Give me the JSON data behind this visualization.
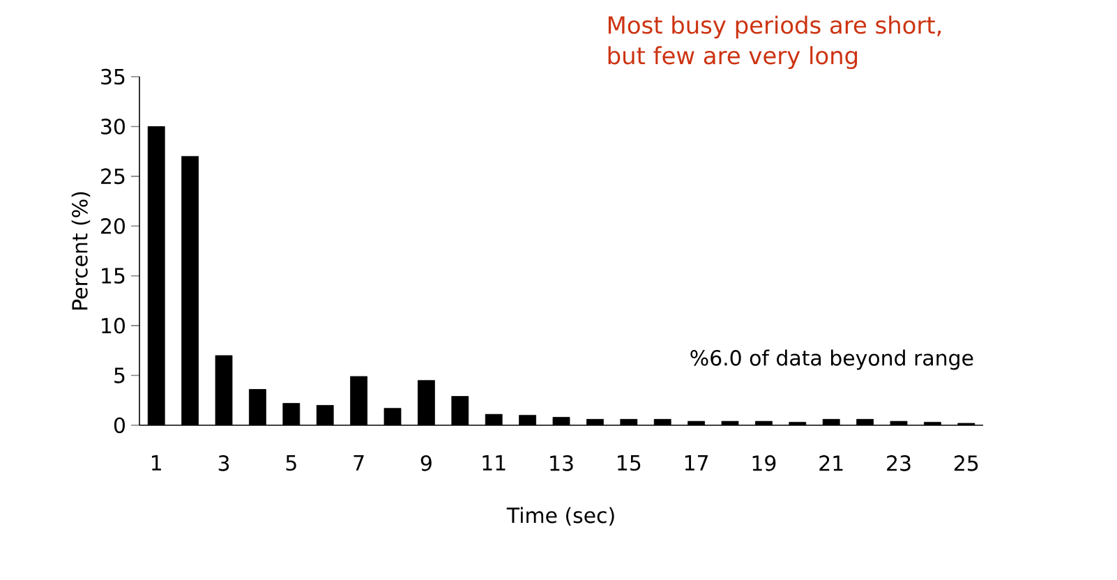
{
  "chart_data": {
    "type": "bar",
    "xlabel": "Time (sec)",
    "ylabel": "Percent (%)",
    "categories": [
      "1",
      null,
      "3",
      null,
      "5",
      null,
      "7",
      null,
      "9",
      null,
      "11",
      null,
      "13",
      null,
      "15",
      null,
      "17",
      null,
      "19",
      null,
      "21",
      null,
      "23",
      null,
      "25"
    ],
    "values": [
      30,
      27,
      7,
      3.6,
      2.2,
      2,
      4.9,
      1.7,
      4.5,
      2.9,
      1.1,
      1,
      0.8,
      0.6,
      0.6,
      0.6,
      0.4,
      0.4,
      0.4,
      0.3,
      0.6,
      0.6,
      0.4,
      0.3,
      0.2
    ],
    "color": "#000000",
    "ylim": [
      0,
      35
    ],
    "yticks": [
      0,
      5,
      10,
      15,
      20,
      25,
      30,
      35
    ],
    "grid": false,
    "annotations": [
      "Most busy periods are short,\nbut few are very long",
      "%6.0 of data beyond range"
    ]
  }
}
